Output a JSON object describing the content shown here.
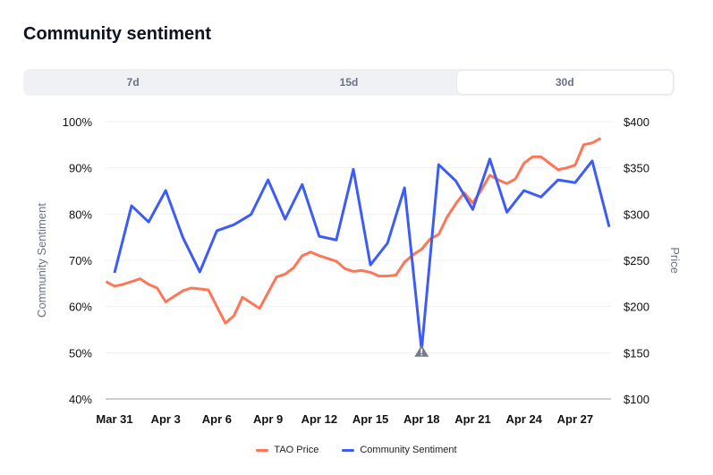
{
  "title": "Community sentiment",
  "tabs": [
    {
      "label": "7d",
      "active": false
    },
    {
      "label": "15d",
      "active": false
    },
    {
      "label": "30d",
      "active": true
    }
  ],
  "colors": {
    "price": "#ff7557",
    "sentiment": "#3d5cf5",
    "grid": "#eef0f4",
    "axis": "#9a9ca3",
    "warning": "#777b86"
  },
  "chart_data": {
    "type": "line",
    "title": "",
    "ylabel_left": "Community Sentiment",
    "ylabel_right": "Price",
    "ylim_left": [
      40,
      100
    ],
    "ylim_right": [
      100,
      400
    ],
    "yticks_left": [
      "40%",
      "50%",
      "60%",
      "70%",
      "80%",
      "90%",
      "100%"
    ],
    "yticks_right": [
      "$100",
      "$150",
      "$200",
      "$250",
      "$300",
      "$350",
      "$400"
    ],
    "xticks": [
      "Mar 31",
      "Apr 3",
      "Apr 6",
      "Apr 9",
      "Apr 12",
      "Apr 15",
      "Apr 18",
      "Apr 21",
      "Apr 24",
      "Apr 27"
    ],
    "grid": true,
    "legend_placement": "bottom",
    "series": [
      {
        "name": "TAO Price",
        "axis": "right",
        "start": "Mar 30 12:00",
        "interval_hours": 12,
        "values": [
          227,
          222,
          224,
          227,
          230,
          224,
          220,
          205,
          211,
          217,
          220,
          219,
          218,
          200,
          182,
          190,
          210,
          204,
          198,
          215,
          232,
          235,
          242,
          255,
          259,
          255,
          252,
          249,
          241,
          238,
          239,
          237,
          233,
          233,
          234,
          248,
          256,
          262,
          273,
          278,
          297,
          311,
          323,
          312,
          326,
          342,
          337,
          333,
          338,
          355,
          362,
          362,
          355,
          348,
          350,
          353,
          375,
          377,
          382
        ]
      },
      {
        "name": "Community Sentiment",
        "axis": "left",
        "start": "Mar 31",
        "interval_hours": 24,
        "values": [
          67.3,
          81.8,
          78.3,
          85.1,
          75.0,
          67.5,
          76.4,
          77.7,
          79.9,
          87.4,
          78.9,
          86.4,
          75.2,
          74.4,
          89.7,
          69.0,
          73.7,
          85.7,
          50.5,
          90.7,
          87.2,
          81.0,
          91.9,
          80.4,
          85.1,
          83.7,
          87.4,
          86.8,
          91.5,
          77.2
        ],
        "annotations": [
          {
            "date": "Apr 18",
            "icon": "warning-icon"
          }
        ]
      }
    ]
  }
}
